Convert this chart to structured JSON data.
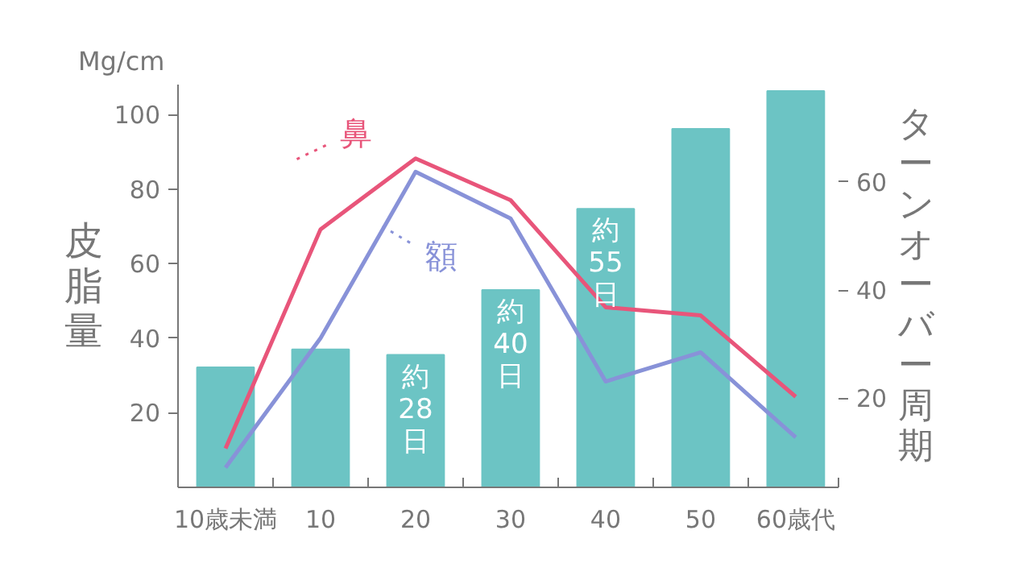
{
  "chart_data": {
    "type": "bar",
    "categories": [
      "10歳未満",
      "10",
      "20",
      "30",
      "40",
      "50",
      "60歳代"
    ],
    "ylabel": "皮脂量",
    "y2label": "ターンオーバー周期",
    "annotations": [
      "Mg/cm"
    ],
    "ylim": [
      0,
      108
    ],
    "yticks": [
      20,
      40,
      60,
      80,
      100
    ],
    "y2lim": [
      3.5,
      78
    ],
    "y2ticks": [
      20,
      40,
      60
    ],
    "grid": false,
    "legend": "top left",
    "marker": "none",
    "line_style": "solid",
    "series": [
      {
        "axis": "y2",
        "color": "#6cc4c4",
        "values": [
          25.7,
          29,
          28,
          40,
          55,
          69.8,
          76.8
        ],
        "value_labels": [
          null,
          null,
          "約28日",
          "約40日",
          "約55日",
          null,
          null
        ]
      },
      {
        "type": "line",
        "axis": "y",
        "name": "鼻",
        "color": "#e8557a",
        "values": [
          10.4,
          69.2,
          88.2,
          77,
          48.3,
          46.1,
          24.3
        ]
      },
      {
        "type": "line",
        "axis": "y",
        "name": "額",
        "color": "#8892d8",
        "values": [
          5.3,
          40,
          84.6,
          72.1,
          28.4,
          36.2,
          13.4
        ]
      }
    ]
  }
}
